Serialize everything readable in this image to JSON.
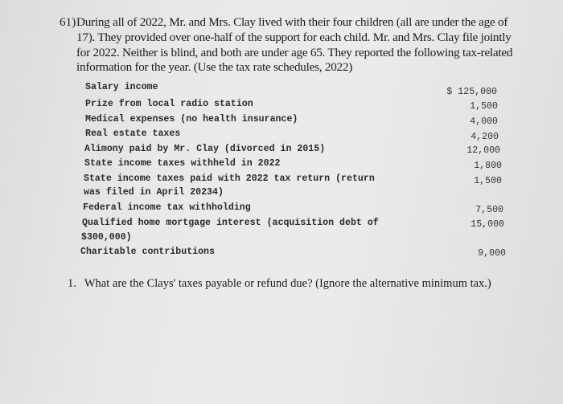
{
  "problem": {
    "number": "61)",
    "intro_lines": [
      "During all of 2022, Mr. and Mrs. Clay lived with their four children (all are under the age of",
      "17). They provided over one-half of the support for each child. Mr. and Mrs. Clay file jointly",
      "for 2022. Neither is blind, and both are under age 65. They reported the following tax-related",
      "information for the year. (Use the tax rate schedules, 2022)"
    ]
  },
  "items": [
    {
      "label": [
        "Salary income"
      ],
      "value": "$ 125,000"
    },
    {
      "label": [
        "Prize from local radio station"
      ],
      "value": "1,500"
    },
    {
      "label": [
        "Medical expenses (no health insurance)"
      ],
      "value": "4,000"
    },
    {
      "label": [
        "Real estate taxes"
      ],
      "value": "4,200"
    },
    {
      "label": [
        "Alimony paid by Mr. Clay (divorced in 2015)"
      ],
      "value": "12,000"
    },
    {
      "label": [
        "State income taxes withheld in 2022"
      ],
      "value": "1,800"
    },
    {
      "label": [
        "State income taxes paid with 2022 tax return (return",
        "was filed in April 20234)"
      ],
      "value": "1,500"
    },
    {
      "label": [
        "Federal income tax withholding"
      ],
      "value": "7,500"
    },
    {
      "label": [
        "Qualified home mortgage interest (acquisition debt of",
        "$300,000)"
      ],
      "value": "15,000"
    },
    {
      "label": [
        "Charitable contributions"
      ],
      "value": "9,000"
    }
  ],
  "question": {
    "number": "1.",
    "text": "What are the Clays' taxes payable or refund due? (Ignore the alternative minimum tax.)"
  }
}
